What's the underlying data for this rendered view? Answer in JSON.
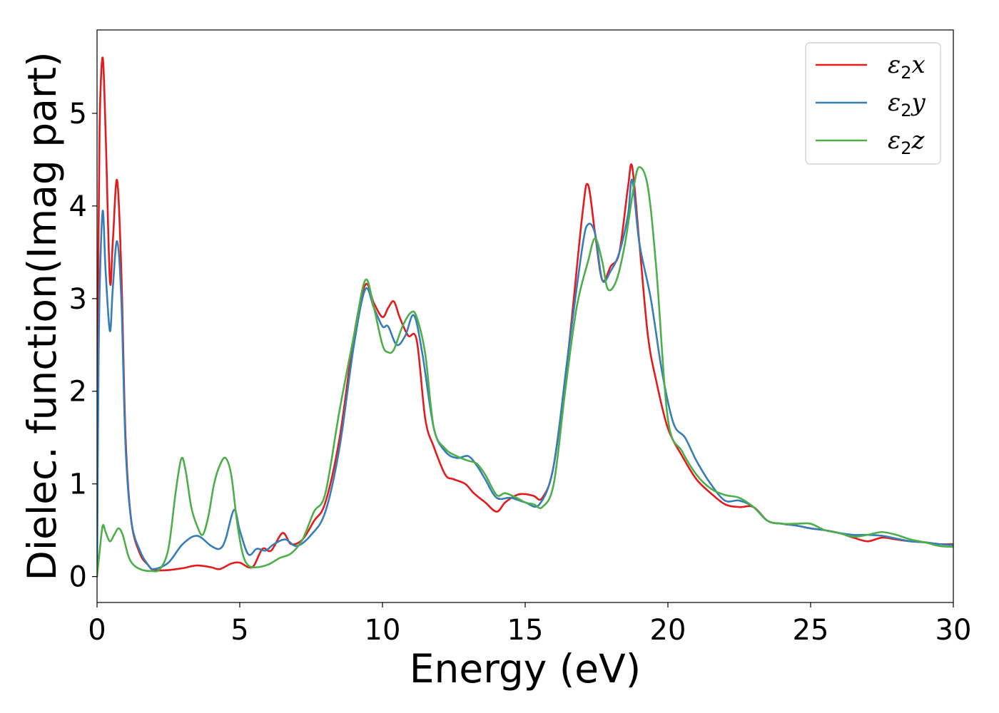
{
  "chart_data": {
    "type": "line",
    "title": "",
    "xlabel": "Energy (eV)",
    "ylabel": "Dielec. function(Imag part)",
    "xlim": [
      0,
      30
    ],
    "ylim": [
      -0.28,
      5.9
    ],
    "xticks": [
      0,
      5,
      10,
      15,
      20,
      25,
      30
    ],
    "yticks": [
      0,
      1,
      2,
      3,
      4,
      5
    ],
    "xtick_labels": [
      "0",
      "5",
      "10",
      "15",
      "20",
      "25",
      "30"
    ],
    "ytick_labels": [
      "0",
      "1",
      "2",
      "3",
      "4",
      "5"
    ],
    "grid": false,
    "legend_position": "top-right",
    "series": [
      {
        "label_main": "ε",
        "label_sub": "2",
        "label_suffix": "x",
        "color": "#e41a1c",
        "x": [
          0,
          0.05,
          0.1,
          0.2,
          0.3,
          0.45,
          0.55,
          0.7,
          0.85,
          1.0,
          1.2,
          1.5,
          1.8,
          2.0,
          2.5,
          3.0,
          3.5,
          4.0,
          4.3,
          4.7,
          5.0,
          5.3,
          5.5,
          5.8,
          6.1,
          6.5,
          6.8,
          7.2,
          7.6,
          8.0,
          8.5,
          9.0,
          9.4,
          9.7,
          10.0,
          10.2,
          10.4,
          10.6,
          10.9,
          11.2,
          11.5,
          11.8,
          12.2,
          12.5,
          12.9,
          13.2,
          13.6,
          14.0,
          14.3,
          14.7,
          15.0,
          15.3,
          15.6,
          16.0,
          16.5,
          17.0,
          17.2,
          17.45,
          17.7,
          18.0,
          18.3,
          18.6,
          18.75,
          19.0,
          19.3,
          19.6,
          20.0,
          20.5,
          21.0,
          21.5,
          22.0,
          22.5,
          23.0,
          23.5,
          24.0,
          24.5,
          25.0,
          25.5,
          26.0,
          26.5,
          27.0,
          27.5,
          28.0,
          28.5,
          29.0,
          29.5,
          30.0
        ],
        "y": [
          0.0,
          3.6,
          5.0,
          5.6,
          4.8,
          3.2,
          3.6,
          4.28,
          3.3,
          1.5,
          0.6,
          0.25,
          0.12,
          0.07,
          0.07,
          0.09,
          0.12,
          0.1,
          0.08,
          0.14,
          0.15,
          0.1,
          0.12,
          0.3,
          0.28,
          0.47,
          0.35,
          0.4,
          0.6,
          0.8,
          1.5,
          2.6,
          3.15,
          2.95,
          2.8,
          2.9,
          2.97,
          2.8,
          2.6,
          2.55,
          1.7,
          1.4,
          1.1,
          1.05,
          1.0,
          0.9,
          0.8,
          0.7,
          0.8,
          0.88,
          0.89,
          0.87,
          0.85,
          1.2,
          2.4,
          3.9,
          4.23,
          3.7,
          3.2,
          3.35,
          3.5,
          4.2,
          4.42,
          3.6,
          2.6,
          2.1,
          1.6,
          1.3,
          1.05,
          0.9,
          0.78,
          0.75,
          0.75,
          0.6,
          0.57,
          0.55,
          0.52,
          0.5,
          0.47,
          0.42,
          0.38,
          0.42,
          0.4,
          0.38,
          0.37,
          0.35,
          0.35
        ]
      },
      {
        "label_main": "ε",
        "label_sub": "2",
        "label_suffix": "y",
        "color": "#377eb8",
        "x": [
          0,
          0.05,
          0.1,
          0.2,
          0.3,
          0.45,
          0.55,
          0.7,
          0.85,
          1.0,
          1.2,
          1.5,
          1.8,
          2.0,
          2.5,
          3.0,
          3.5,
          4.0,
          4.3,
          4.5,
          4.8,
          5.0,
          5.3,
          5.6,
          5.9,
          6.2,
          6.6,
          7.0,
          7.5,
          8.0,
          8.5,
          9.0,
          9.4,
          9.7,
          10.0,
          10.2,
          10.5,
          10.8,
          11.1,
          11.4,
          11.8,
          12.2,
          12.6,
          13.0,
          13.3,
          13.6,
          14.0,
          14.5,
          15.0,
          15.5,
          16.0,
          16.5,
          17.0,
          17.2,
          17.45,
          17.7,
          18.0,
          18.3,
          18.6,
          18.75,
          19.0,
          19.4,
          19.8,
          20.2,
          20.6,
          21.0,
          21.5,
          22.0,
          22.5,
          23.0,
          23.5,
          24.0,
          24.5,
          25.0,
          25.5,
          26.0,
          26.5,
          27.0,
          27.5,
          28.0,
          28.5,
          29.0,
          29.5,
          30.0
        ],
        "y": [
          0.0,
          2.2,
          3.2,
          3.95,
          3.3,
          2.65,
          3.1,
          3.62,
          3.0,
          1.4,
          0.6,
          0.28,
          0.12,
          0.08,
          0.15,
          0.35,
          0.44,
          0.33,
          0.3,
          0.4,
          0.72,
          0.5,
          0.24,
          0.3,
          0.28,
          0.35,
          0.4,
          0.33,
          0.45,
          0.7,
          1.4,
          2.5,
          3.1,
          2.9,
          2.7,
          2.7,
          2.5,
          2.6,
          2.82,
          2.4,
          1.6,
          1.35,
          1.28,
          1.3,
          1.2,
          1.05,
          0.85,
          0.85,
          0.8,
          0.78,
          1.2,
          2.4,
          3.55,
          3.8,
          3.7,
          3.2,
          3.3,
          3.5,
          3.9,
          4.28,
          3.6,
          3.0,
          2.2,
          1.65,
          1.5,
          1.25,
          1.0,
          0.82,
          0.82,
          0.75,
          0.6,
          0.57,
          0.55,
          0.52,
          0.5,
          0.47,
          0.45,
          0.45,
          0.44,
          0.41,
          0.38,
          0.37,
          0.35,
          0.34
        ]
      },
      {
        "label_main": "ε",
        "label_sub": "2",
        "label_suffix": "z",
        "color": "#4daf4a",
        "x": [
          0,
          0.1,
          0.2,
          0.3,
          0.45,
          0.6,
          0.75,
          0.9,
          1.1,
          1.3,
          1.6,
          1.9,
          2.2,
          2.5,
          2.75,
          2.95,
          3.1,
          3.3,
          3.5,
          3.7,
          3.9,
          4.1,
          4.3,
          4.5,
          4.7,
          4.9,
          5.1,
          5.3,
          5.6,
          6.0,
          6.4,
          6.8,
          7.2,
          7.6,
          8.0,
          8.5,
          9.0,
          9.4,
          9.7,
          10.0,
          10.2,
          10.4,
          10.7,
          11.0,
          11.2,
          11.5,
          11.8,
          12.2,
          12.6,
          13.0,
          13.3,
          13.6,
          14.0,
          14.3,
          14.7,
          15.0,
          15.3,
          15.6,
          16.0,
          16.4,
          16.8,
          17.2,
          17.45,
          17.7,
          17.9,
          18.2,
          18.5,
          18.8,
          19.0,
          19.3,
          19.6,
          20.0,
          20.5,
          21.0,
          21.5,
          22.0,
          22.5,
          23.0,
          23.5,
          24.0,
          24.5,
          25.0,
          25.5,
          26.0,
          26.5,
          27.0,
          27.5,
          28.0,
          28.5,
          29.0,
          29.5,
          30.0
        ],
        "y": [
          0.0,
          0.3,
          0.55,
          0.48,
          0.38,
          0.45,
          0.52,
          0.45,
          0.22,
          0.12,
          0.07,
          0.06,
          0.08,
          0.3,
          0.9,
          1.27,
          1.15,
          0.75,
          0.55,
          0.45,
          0.65,
          1.0,
          1.2,
          1.28,
          1.1,
          0.6,
          0.25,
          0.12,
          0.1,
          0.13,
          0.2,
          0.25,
          0.4,
          0.7,
          0.9,
          1.8,
          2.6,
          3.2,
          2.9,
          2.5,
          2.42,
          2.45,
          2.7,
          2.85,
          2.8,
          2.4,
          1.6,
          1.38,
          1.3,
          1.25,
          1.22,
          1.1,
          0.88,
          0.9,
          0.85,
          0.8,
          0.78,
          0.75,
          1.0,
          2.0,
          2.9,
          3.4,
          3.65,
          3.4,
          3.1,
          3.2,
          3.6,
          4.2,
          4.42,
          4.2,
          3.3,
          1.7,
          1.35,
          1.1,
          0.95,
          0.88,
          0.85,
          0.75,
          0.6,
          0.57,
          0.57,
          0.57,
          0.5,
          0.47,
          0.43,
          0.45,
          0.48,
          0.45,
          0.4,
          0.37,
          0.33,
          0.32
        ]
      }
    ]
  }
}
